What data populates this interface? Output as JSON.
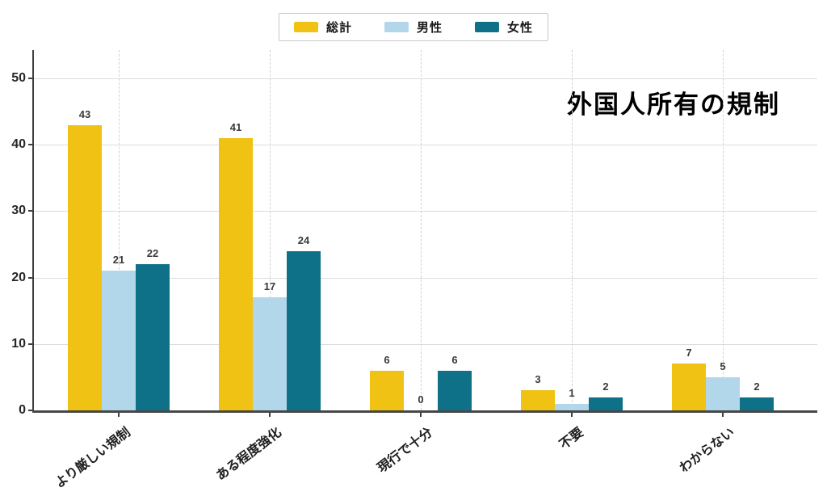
{
  "chart_data": {
    "type": "bar",
    "title": "外国人所有の規制",
    "categories": [
      "より厳しい規制",
      "ある程度強化",
      "現行で十分",
      "不要",
      "わからない"
    ],
    "series": [
      {
        "key": "total",
        "name": "総計",
        "color": "#EFC213",
        "values": [
          43,
          41,
          6,
          3,
          7
        ]
      },
      {
        "key": "male",
        "name": "男性",
        "color": "#B3D7EA",
        "values": [
          21,
          17,
          0,
          1,
          5
        ]
      },
      {
        "key": "female",
        "name": "女性",
        "color": "#0E7187",
        "values": [
          22,
          24,
          6,
          2,
          2
        ]
      }
    ],
    "xlabel": "",
    "ylabel": "",
    "ylim": [
      0,
      54
    ],
    "yticks": [
      0,
      10,
      20,
      30,
      40,
      50
    ],
    "grid": true,
    "grid_horizontal_style": "solid",
    "grid_vertical_style": "dashed",
    "legend_position": "top-center",
    "value_labels_shown": true
  }
}
